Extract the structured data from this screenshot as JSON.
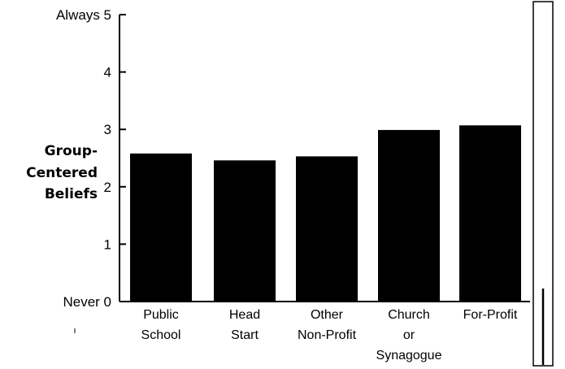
{
  "chart_data": {
    "type": "bar",
    "categories": [
      [
        "Public",
        "School"
      ],
      [
        "Head",
        "Start"
      ],
      [
        "Other",
        "Non-Profit"
      ],
      [
        "Church",
        "or",
        "Synagogue"
      ],
      [
        "For-Profit"
      ]
    ],
    "values": [
      2.58,
      2.46,
      2.53,
      2.99,
      3.07
    ],
    "ylabel": [
      "Group-",
      "Centered",
      "Beliefs"
    ],
    "ylim": [
      0,
      5
    ],
    "yticks": [
      {
        "value": 0,
        "label": "Never 0"
      },
      {
        "value": 1,
        "label": "1"
      },
      {
        "value": 2,
        "label": "2"
      },
      {
        "value": 3,
        "label": "3"
      },
      {
        "value": 4,
        "label": "4"
      },
      {
        "value": 5,
        "label": "Always 5"
      }
    ],
    "grid": false,
    "bar_color": "#000000",
    "side_panel_color": "#ffffff"
  }
}
